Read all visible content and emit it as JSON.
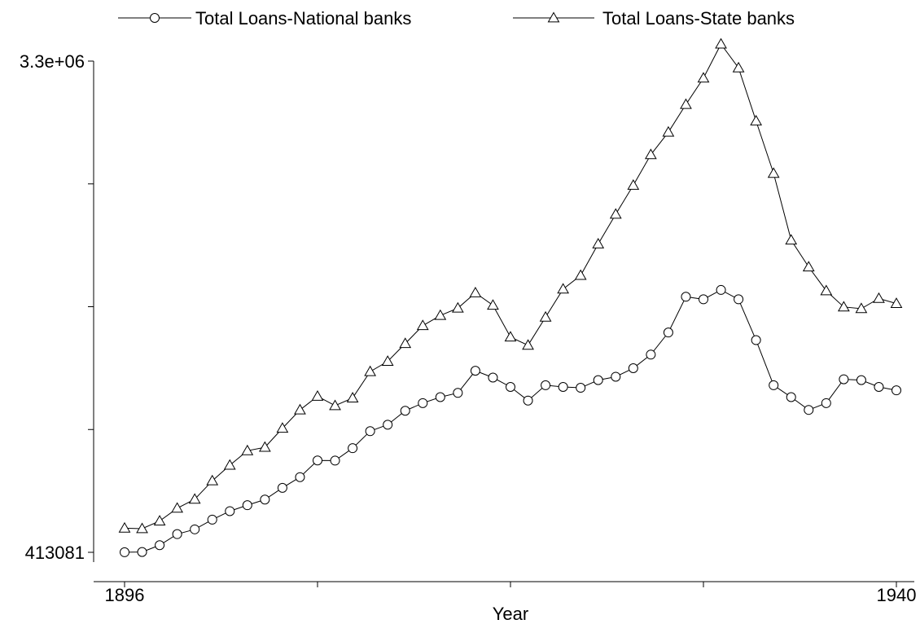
{
  "chart_data": {
    "type": "line",
    "xlabel": "Year",
    "ylabel": "",
    "xlim": [
      1896,
      1940
    ],
    "ylim": [
      413081,
      3300000
    ],
    "x_tick_labels": [
      "1896",
      "1940"
    ],
    "y_tick_labels": [
      "413081",
      "3.3e+06"
    ],
    "legend_position": "top",
    "x": [
      1896,
      1897,
      1898,
      1899,
      1900,
      1901,
      1902,
      1903,
      1904,
      1905,
      1906,
      1907,
      1908,
      1909,
      1910,
      1911,
      1912,
      1913,
      1914,
      1915,
      1916,
      1917,
      1918,
      1919,
      1920,
      1921,
      1922,
      1923,
      1924,
      1925,
      1926,
      1927,
      1928,
      1929,
      1930,
      1931,
      1932,
      1933,
      1934,
      1935,
      1936,
      1937,
      1938,
      1939,
      1940
    ],
    "series": [
      {
        "name": "Total Loans-National banks",
        "marker": "circle",
        "values": [
          413500,
          415000,
          455000,
          520000,
          548000,
          605000,
          655000,
          690000,
          723000,
          792000,
          855000,
          953000,
          952000,
          1025000,
          1125000,
          1163000,
          1245000,
          1290000,
          1325000,
          1350000,
          1480000,
          1440000,
          1385000,
          1305000,
          1395000,
          1385000,
          1380000,
          1425000,
          1445000,
          1495000,
          1575000,
          1705000,
          1915000,
          1900000,
          1955000,
          1900000,
          1660000,
          1395000,
          1325000,
          1250000,
          1290000,
          1430000,
          1425000,
          1385000,
          1365000
        ]
      },
      {
        "name": "Total Loans-State banks",
        "marker": "triangle",
        "values": [
          555000,
          552000,
          597000,
          672000,
          725000,
          833000,
          925000,
          1010000,
          1030000,
          1142000,
          1250000,
          1330000,
          1275000,
          1320000,
          1475000,
          1535000,
          1640000,
          1745000,
          1805000,
          1848000,
          1938000,
          1865000,
          1678000,
          1630000,
          1795000,
          1960000,
          2040000,
          2225000,
          2400000,
          2570000,
          2750000,
          2882000,
          3045000,
          3200000,
          3400000,
          3260000,
          2948000,
          2640000,
          2248000,
          2090000,
          1950000,
          1855000,
          1845000,
          1905000,
          1875000
        ]
      }
    ]
  }
}
